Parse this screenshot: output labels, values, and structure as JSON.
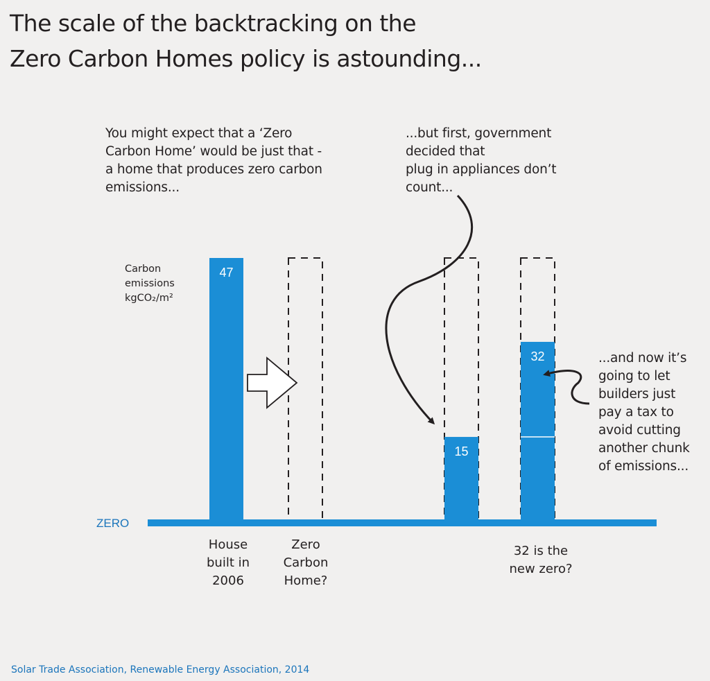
{
  "title_lines": [
    "The scale of the backtracking on the",
    "Zero Carbon Homes policy is astounding..."
  ],
  "annotations": {
    "left": [
      "You might expect that a ‘Zero",
      "Carbon Home’ would be just that -",
      "a home that produces zero carbon",
      "emissions..."
    ],
    "middle": [
      "...but first, government",
      "decided that",
      "plug in appliances don’t",
      "count..."
    ],
    "right": [
      "...and now it’s",
      "going to let",
      "builders just",
      "pay a tax to",
      "avoid cutting",
      "another chunk",
      "of emissions..."
    ]
  },
  "ylabel_lines": [
    "Carbon",
    "emissions",
    "kgCO₂/m²"
  ],
  "source": "Solar Trade Association, Renewable Energy Association, 2014",
  "colors": {
    "bar": "#1b8ed6",
    "text": "#231f20",
    "zero_label": "#1b75bb",
    "background": "#f1f0ef"
  },
  "chart_data": {
    "type": "bar",
    "baseline_label": "ZERO",
    "ylim": [
      0,
      47
    ],
    "bars": [
      {
        "value": 47,
        "label": "47",
        "category_lines": [
          "House",
          "built in",
          "2006"
        ],
        "dashed_outline": false,
        "divider_at": null
      },
      {
        "value": 0,
        "label": "",
        "category_lines": [
          "Zero",
          "Carbon",
          "Home?"
        ],
        "dashed_outline": true,
        "divider_at": null
      },
      {
        "value": 15,
        "label": "15",
        "category_lines": [],
        "dashed_outline": true,
        "divider_at": null
      },
      {
        "value": 32,
        "label": "32",
        "category_lines": [
          "32 is the",
          "new zero?"
        ],
        "dashed_outline": true,
        "divider_at": 15
      }
    ]
  }
}
